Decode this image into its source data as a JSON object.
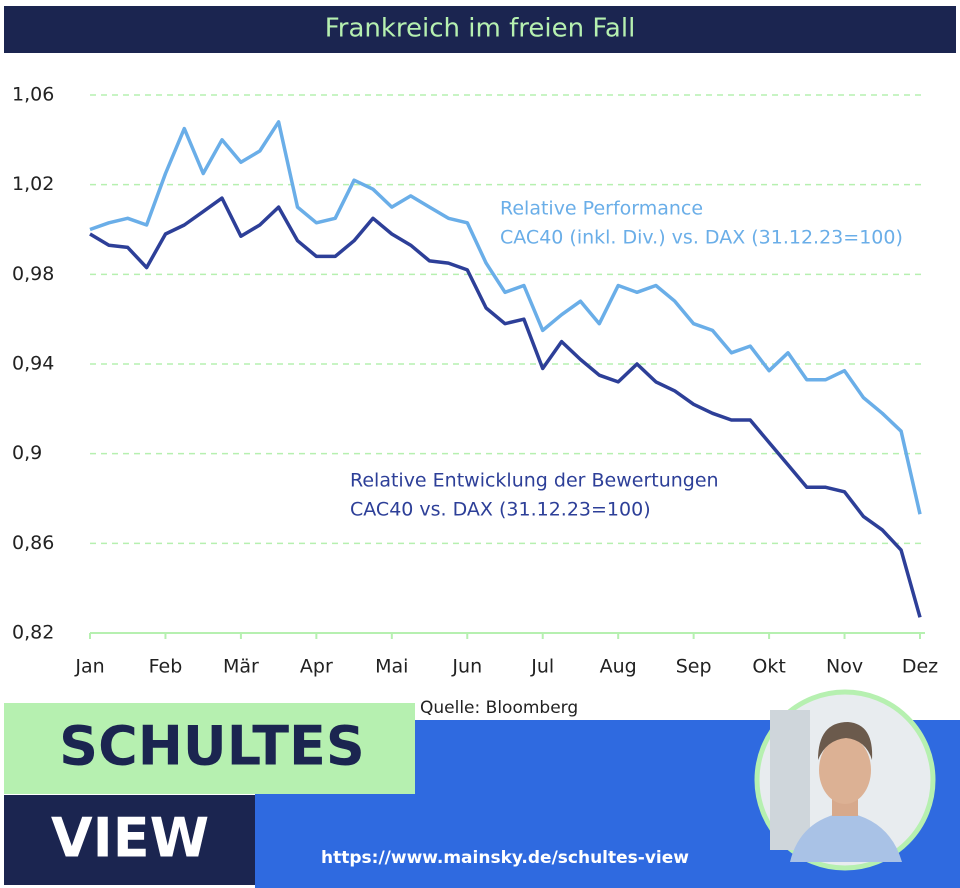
{
  "chart_data": {
    "type": "line",
    "title": "Frankreich im freien Fall",
    "source": "Quelle: Bloomberg",
    "xlim": [
      0,
      11
    ],
    "xticks": [
      {
        "value": 0,
        "label": "Jan"
      },
      {
        "value": 1,
        "label": "Feb"
      },
      {
        "value": 2,
        "label": "Mär"
      },
      {
        "value": 3,
        "label": "Apr"
      },
      {
        "value": 4,
        "label": "Mai"
      },
      {
        "value": 5,
        "label": "Jun"
      },
      {
        "value": 6,
        "label": "Jul"
      },
      {
        "value": 7,
        "label": "Aug"
      },
      {
        "value": 8,
        "label": "Sep"
      },
      {
        "value": 9,
        "label": "Okt"
      },
      {
        "value": 10,
        "label": "Nov"
      },
      {
        "value": 11,
        "label": "Dez"
      }
    ],
    "ylim": [
      0.82,
      1.06
    ],
    "yticks": [
      {
        "value": 0.82,
        "label": "0,82"
      },
      {
        "value": 0.86,
        "label": "0,86"
      },
      {
        "value": 0.9,
        "label": "0,9"
      },
      {
        "value": 0.94,
        "label": "0,94"
      },
      {
        "value": 0.98,
        "label": "0,98"
      },
      {
        "value": 1.02,
        "label": "1,02"
      },
      {
        "value": 1.06,
        "label": "1,06"
      }
    ],
    "grid": true,
    "x": [
      0,
      0.25,
      0.5,
      0.75,
      1,
      1.25,
      1.5,
      1.75,
      2,
      2.25,
      2.5,
      2.75,
      3,
      3.25,
      3.5,
      3.75,
      4,
      4.25,
      4.5,
      4.75,
      5,
      5.25,
      5.5,
      5.75,
      6,
      6.25,
      6.5,
      6.75,
      7,
      7.25,
      7.5,
      7.75,
      8,
      8.25,
      8.5,
      8.75,
      9,
      9.25,
      9.5,
      9.75,
      10,
      10.25,
      10.5,
      10.75,
      11
    ],
    "series": [
      {
        "name": "Relative Performance",
        "name_detail": "CAC40 (inkl. Div.) vs. DAX (31.12.23=100)",
        "color": "#6aaee8",
        "values": [
          1.0,
          1.003,
          1.005,
          1.002,
          1.025,
          1.045,
          1.025,
          1.04,
          1.03,
          1.035,
          1.048,
          1.01,
          1.003,
          1.005,
          1.022,
          1.018,
          1.01,
          1.015,
          1.01,
          1.005,
          1.003,
          0.985,
          0.972,
          0.975,
          0.955,
          0.962,
          0.968,
          0.958,
          0.975,
          0.972,
          0.975,
          0.968,
          0.958,
          0.955,
          0.945,
          0.948,
          0.937,
          0.945,
          0.933,
          0.933,
          0.937,
          0.925,
          0.918,
          0.91,
          0.873
        ]
      },
      {
        "name": "Relative Entwicklung der Bewertungen",
        "name_detail": "CAC40 vs. DAX (31.12.23=100)",
        "color": "#2d3f98",
        "values": [
          0.998,
          0.993,
          0.992,
          0.983,
          0.998,
          1.002,
          1.008,
          1.014,
          0.997,
          1.002,
          1.01,
          0.995,
          0.988,
          0.988,
          0.995,
          1.005,
          0.998,
          0.993,
          0.986,
          0.985,
          0.982,
          0.965,
          0.958,
          0.96,
          0.938,
          0.95,
          0.942,
          0.935,
          0.932,
          0.94,
          0.932,
          0.928,
          0.922,
          0.918,
          0.915,
          0.915,
          0.905,
          0.895,
          0.885,
          0.885,
          0.883,
          0.872,
          0.866,
          0.857,
          0.827
        ]
      }
    ]
  },
  "branding": {
    "line1": "SCHULTES",
    "line2": "VIEW",
    "url": "https://www.mainsky.de/schultes-view"
  }
}
